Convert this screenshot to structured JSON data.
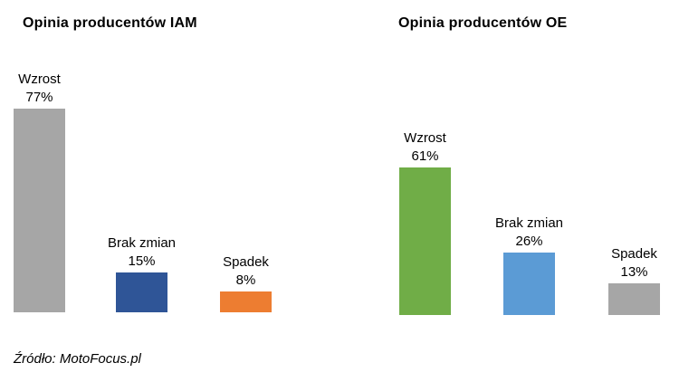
{
  "figure": {
    "source_note": "Źródło: MotoFocus.pl"
  },
  "chart_data": [
    {
      "type": "bar",
      "title": "Opinia producentów IAM",
      "categories": [
        "Wzrost",
        "Brak zmian",
        "Spadek"
      ],
      "values": [
        77,
        15,
        8
      ],
      "unit": "%",
      "data_labels": [
        "77%",
        "15%",
        "8%"
      ],
      "bar_colors": [
        "#A6A6A6",
        "#2F5597",
        "#ED7D31"
      ],
      "xlabel": "",
      "ylabel": "",
      "ylim": [
        0,
        100
      ],
      "grid": false,
      "legend": "none",
      "axes_visible": false
    },
    {
      "type": "bar",
      "title": "Opinia producentów OE",
      "categories": [
        "Wzrost",
        "Brak zmian",
        "Spadek"
      ],
      "values": [
        61,
        26,
        13
      ],
      "unit": "%",
      "data_labels": [
        "61%",
        "26%",
        "13%"
      ],
      "bar_colors": [
        "#70AD47",
        "#5B9BD5",
        "#A6A6A6"
      ],
      "xlabel": "",
      "ylabel": "",
      "ylim": [
        0,
        100
      ],
      "grid": false,
      "legend": "none",
      "axes_visible": false
    }
  ]
}
